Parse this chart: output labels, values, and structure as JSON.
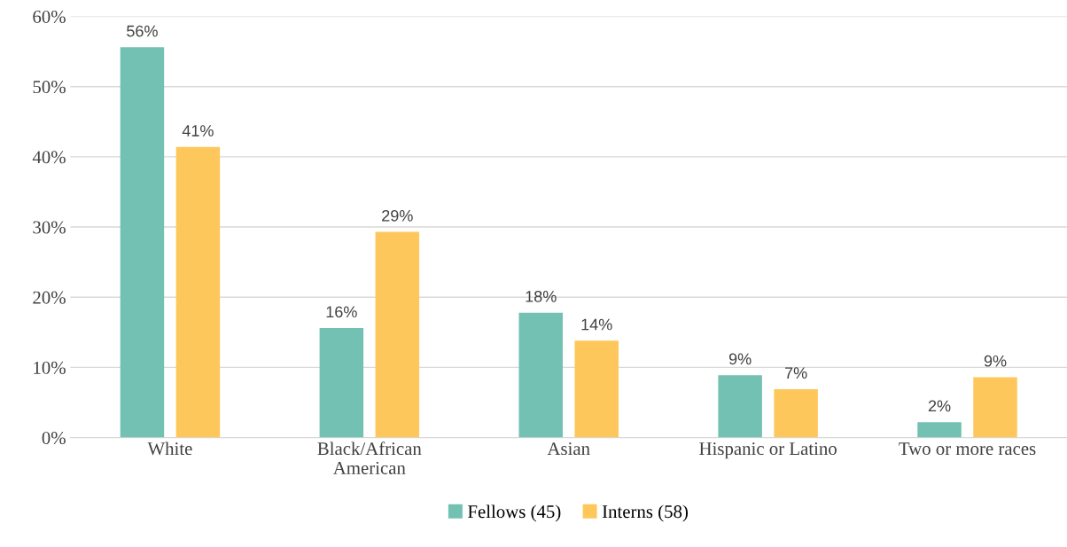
{
  "chart_data": {
    "type": "bar",
    "categories": [
      "White",
      "Black/African\nAmerican",
      "Asian",
      "Hispanic or Latino",
      "Two or more races"
    ],
    "series": [
      {
        "name": "Fellows (45)",
        "color": "#72c1b3",
        "values": [
          55.6,
          15.6,
          17.8,
          8.9,
          2.2
        ],
        "value_labels": [
          "56%",
          "16%",
          "18%",
          "9%",
          "2%"
        ]
      },
      {
        "name": "Interns (58)",
        "color": "#fec75b",
        "values": [
          41.4,
          29.3,
          13.8,
          6.9,
          8.6
        ],
        "value_labels": [
          "41%",
          "29%",
          "14%",
          "7%",
          "9%"
        ]
      }
    ],
    "ylim": [
      0,
      60
    ],
    "yticks": [
      {
        "value": 0,
        "label": "0%"
      },
      {
        "value": 10,
        "label": "10%"
      },
      {
        "value": 20,
        "label": "20%"
      },
      {
        "value": 30,
        "label": "30%"
      },
      {
        "value": 40,
        "label": "40%"
      },
      {
        "value": 50,
        "label": "50%"
      },
      {
        "value": 60,
        "label": "60%"
      }
    ],
    "grid": "y",
    "legend": "bottom"
  }
}
